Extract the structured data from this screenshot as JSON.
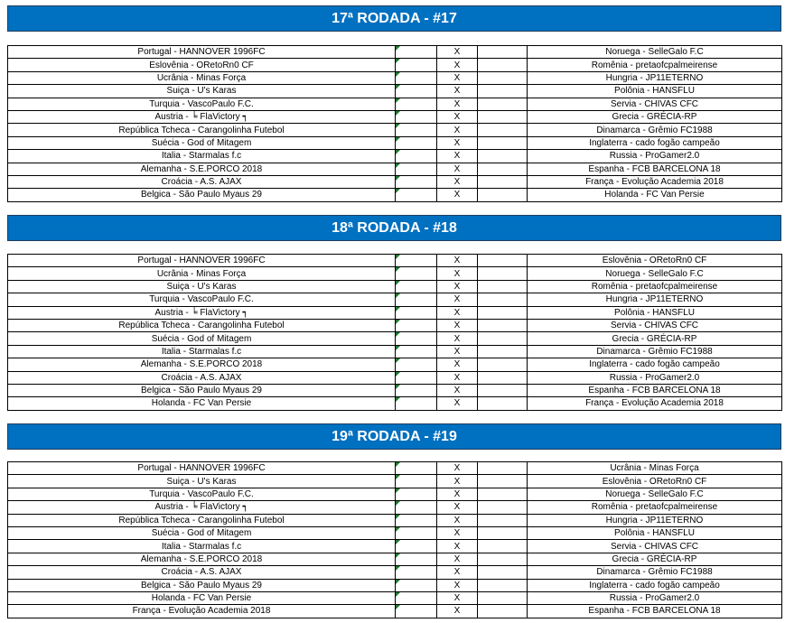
{
  "rounds": [
    {
      "title": "17ª RODADA - #17",
      "separator": "X",
      "matches": [
        [
          "Portugal - HANNOVER 1996FC",
          "Noruega - SelleGalo F.C"
        ],
        [
          "Eslovênia - ORetoRn0 CF",
          "Romênia - pretaofcpalmeirense"
        ],
        [
          "Ucrânia - Minas Força",
          "Hungria - JP11ETERNO"
        ],
        [
          "Suiça - U's Karas",
          "Polônia - HANSFLU"
        ],
        [
          "Turquia - VascoPaulo F.C.",
          "Servia - CHIVAS CFC"
        ],
        [
          "Austria - ╘ FlaVictory ┑",
          "Grecia - GRÉCIA-RP"
        ],
        [
          "República Tcheca - Carangolinha Futebol",
          "Dinamarca - Grêmio FC1988"
        ],
        [
          "Suécia - God of Mitagem",
          "Inglaterra - cado fogão campeão"
        ],
        [
          "Italia - Starmalas f.c",
          "Russia - ProGamer2.0"
        ],
        [
          "Alemanha - S.E.PORCO 2018",
          "Espanha - FCB BARCELONA 18"
        ],
        [
          "Croácia - A.S. AJAX",
          "França - Evolução Academia 2018"
        ],
        [
          "Belgica - São Paulo Myaus 29",
          "Holanda - FC Van Persie"
        ]
      ]
    },
    {
      "title": "18ª RODADA - #18",
      "separator": "X",
      "matches": [
        [
          "Portugal - HANNOVER 1996FC",
          "Eslovênia - ORetoRn0 CF"
        ],
        [
          "Ucrânia - Minas Força",
          "Noruega - SelleGalo F.C"
        ],
        [
          "Suiça - U's Karas",
          "Romênia - pretaofcpalmeirense"
        ],
        [
          "Turquia - VascoPaulo F.C.",
          "Hungria - JP11ETERNO"
        ],
        [
          "Austria - ╘ FlaVictory ┑",
          "Polônia - HANSFLU"
        ],
        [
          "República Tcheca - Carangolinha Futebol",
          "Servia - CHIVAS CFC"
        ],
        [
          "Suécia - God of Mitagem",
          "Grecia - GRÉCIA-RP"
        ],
        [
          "Italia - Starmalas f.c",
          "Dinamarca - Grêmio FC1988"
        ],
        [
          "Alemanha - S.E.PORCO 2018",
          "Inglaterra - cado fogão campeão"
        ],
        [
          "Croácia - A.S. AJAX",
          "Russia - ProGamer2.0"
        ],
        [
          "Belgica - São Paulo Myaus 29",
          "Espanha - FCB BARCELONA 18"
        ],
        [
          "Holanda - FC Van Persie",
          "França - Evolução Academia 2018"
        ]
      ]
    },
    {
      "title": "19ª RODADA - #19",
      "separator": "X",
      "matches": [
        [
          "Portugal - HANNOVER 1996FC",
          "Ucrânia - Minas Força"
        ],
        [
          "Suiça - U's Karas",
          "Eslovênia - ORetoRn0 CF"
        ],
        [
          "Turquia - VascoPaulo F.C.",
          "Noruega - SelleGalo F.C"
        ],
        [
          "Austria - ╘ FlaVictory ┑",
          "Romênia - pretaofcpalmeirense"
        ],
        [
          "República Tcheca - Carangolinha Futebol",
          "Hungria - JP11ETERNO"
        ],
        [
          "Suécia - God of Mitagem",
          "Polônia - HANSFLU"
        ],
        [
          "Italia - Starmalas f.c",
          "Servia - CHIVAS CFC"
        ],
        [
          "Alemanha - S.E.PORCO 2018",
          "Grecia - GRÉCIA-RP"
        ],
        [
          "Croácia - A.S. AJAX",
          "Dinamarca - Grêmio FC1988"
        ],
        [
          "Belgica - São Paulo Myaus 29",
          "Inglaterra - cado fogão campeão"
        ],
        [
          "Holanda - FC Van Persie",
          "Russia - ProGamer2.0"
        ],
        [
          "França - Evolução Academia 2018",
          "Espanha - FCB BARCELONA 18"
        ]
      ]
    }
  ]
}
